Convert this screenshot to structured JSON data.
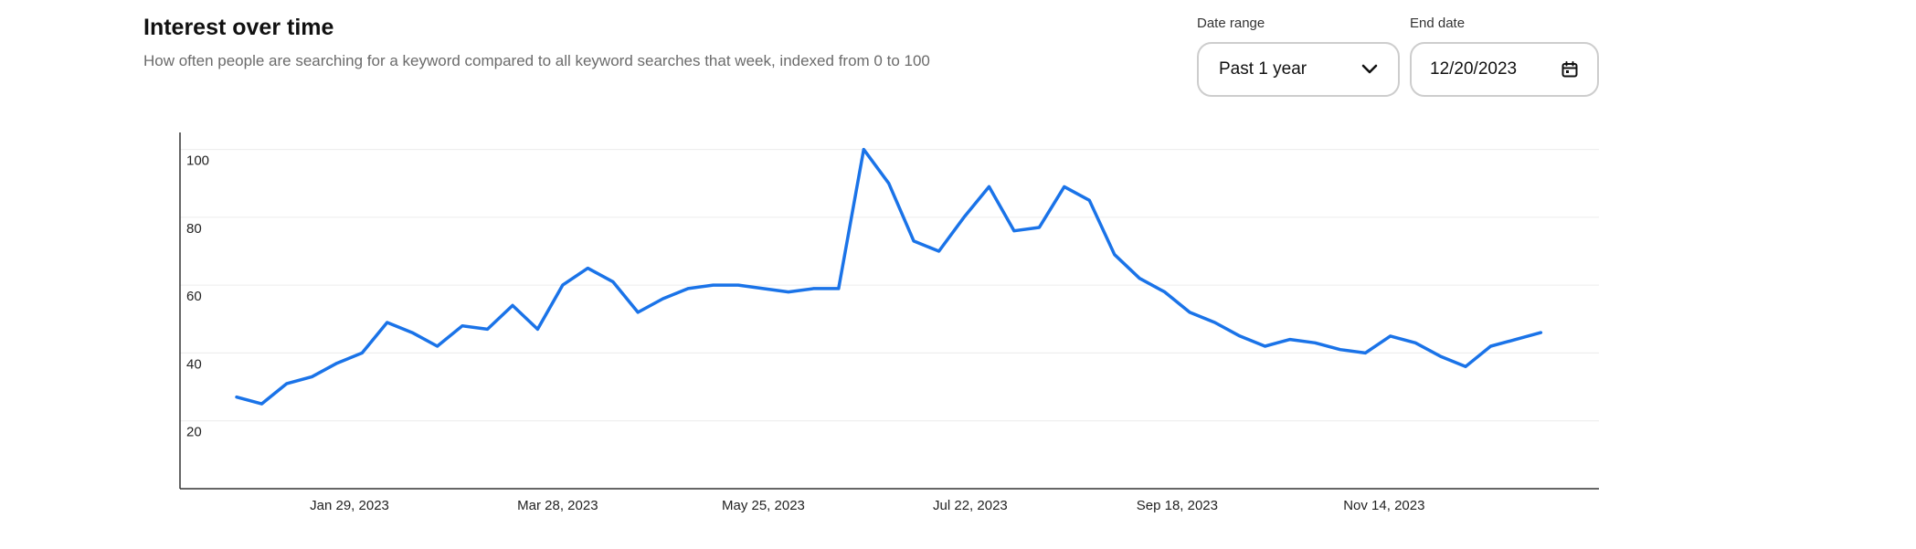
{
  "header": {
    "title": "Interest over time",
    "subtitle": "How often people are searching for a keyword compared to all keyword searches that week, indexed from 0 to 100"
  },
  "controls": {
    "date_range": {
      "label": "Date range",
      "value": "Past 1 year",
      "icon": "chevron-down-icon"
    },
    "end_date": {
      "label": "End date",
      "value": "12/20/2023",
      "icon": "calendar-icon"
    }
  },
  "chart_data": {
    "type": "line",
    "title": "",
    "xlabel": "",
    "ylabel": "",
    "ylim": [
      0,
      100
    ],
    "yticks": [
      20,
      40,
      60,
      80,
      100
    ],
    "xticks": [
      "Jan 29, 2023",
      "Mar 28, 2023",
      "May 25, 2023",
      "Jul 22, 2023",
      "Sep 18, 2023",
      "Nov 14, 2023"
    ],
    "grid": true,
    "line_color": "#1a73e8",
    "series": [
      {
        "values": [
          27,
          25,
          31,
          33,
          37,
          40,
          49,
          46,
          42,
          48,
          47,
          54,
          47,
          60,
          65,
          61,
          52,
          56,
          59,
          60,
          60,
          59,
          58,
          59,
          59,
          100,
          90,
          73,
          70,
          80,
          89,
          76,
          77,
          89,
          85,
          69,
          62,
          58,
          52,
          49,
          45,
          42,
          44,
          43,
          41,
          40,
          45,
          43,
          39,
          36,
          42,
          44,
          46
        ]
      }
    ]
  }
}
